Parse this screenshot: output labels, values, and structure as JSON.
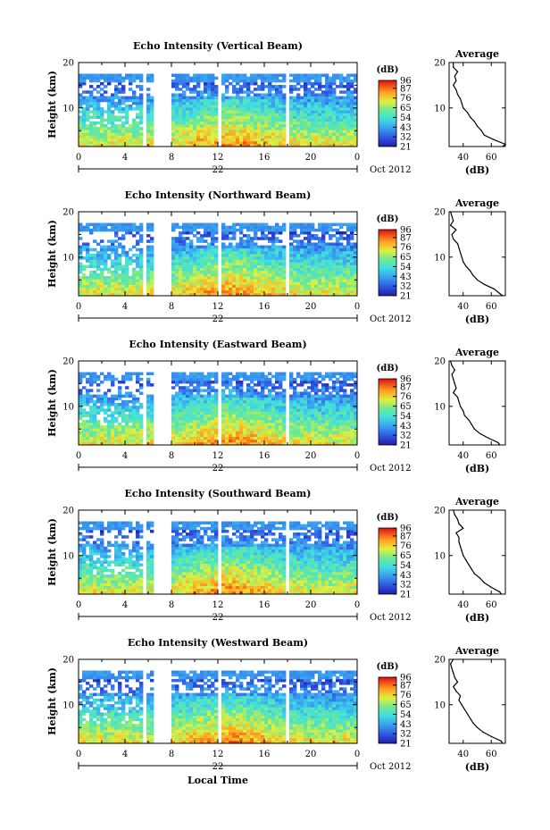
{
  "colorbar_unit": "(dB)",
  "colorbar_ticks": [
    "96",
    "87",
    "76",
    "65",
    "54",
    "43",
    "32",
    "21"
  ],
  "month_label": "Oct 2012",
  "xlabel": "Local Time",
  "chart_data": [
    {
      "type": "heatmap",
      "title": "Echo Intensity (Vertical Beam)",
      "ylabel": "Height (km)",
      "xlabel": "",
      "x_ticks": [
        "0",
        "4",
        "8",
        "12",
        "16",
        "20",
        "0"
      ],
      "xlim": [
        0,
        24
      ],
      "y_ticks": [
        "20",
        "10"
      ],
      "ylim": [
        1.5,
        20
      ],
      "date_label": "22",
      "colorbar": {
        "unit": "(dB)",
        "ticks": [
          96,
          87,
          76,
          65,
          54,
          43,
          32,
          21
        ],
        "range": [
          21,
          96
        ]
      },
      "missing_time_bands": [
        [
          0.8,
          1.0
        ],
        [
          5.6,
          5.8
        ],
        [
          6.6,
          8.0
        ],
        [
          11.9,
          12.2
        ],
        [
          17.7,
          18.0
        ]
      ],
      "profile": {
        "title": "Average",
        "xlabel": "(dB)",
        "x_ticks": [
          "40",
          "60"
        ],
        "xlim": [
          30,
          70
        ],
        "y_ticks": [
          "20",
          "10"
        ],
        "heights": [
          1.5,
          2,
          3,
          4,
          5,
          6,
          7,
          8,
          9,
          10,
          11,
          12,
          13,
          14,
          15,
          16,
          17,
          18,
          19,
          20
        ],
        "values": [
          68,
          70,
          62,
          55,
          53,
          50,
          48,
          45,
          43,
          40,
          39,
          38,
          36,
          35,
          33,
          35,
          34,
          36,
          33,
          33
        ]
      }
    },
    {
      "type": "heatmap",
      "title": "Echo Intensity (Northward Beam)",
      "ylabel": "Height (km)",
      "xlabel": "",
      "x_ticks": [
        "0",
        "4",
        "8",
        "12",
        "16",
        "20",
        "0"
      ],
      "xlim": [
        0,
        24
      ],
      "y_ticks": [
        "20",
        "10"
      ],
      "ylim": [
        1.5,
        20
      ],
      "date_label": "22",
      "colorbar": {
        "unit": "(dB)",
        "ticks": [
          96,
          87,
          76,
          65,
          54,
          43,
          32,
          21
        ],
        "range": [
          21,
          96
        ]
      },
      "missing_time_bands": [
        [
          0.8,
          1.0
        ],
        [
          5.6,
          5.8
        ],
        [
          6.6,
          8.0
        ],
        [
          11.9,
          12.2
        ],
        [
          17.7,
          18.0
        ]
      ],
      "profile": {
        "title": "Average",
        "xlabel": "(dB)",
        "x_ticks": [
          "40",
          "60"
        ],
        "xlim": [
          30,
          70
        ],
        "y_ticks": [
          "20",
          "10"
        ],
        "heights": [
          1.5,
          2,
          3,
          4,
          5,
          6,
          7,
          8,
          9,
          10,
          11,
          12,
          13,
          14,
          15,
          16,
          17,
          18,
          19,
          20
        ],
        "values": [
          68,
          66,
          62,
          55,
          50,
          47,
          45,
          42,
          40,
          39,
          38,
          37,
          36,
          33,
          32,
          35,
          31,
          33,
          32,
          31
        ]
      }
    },
    {
      "type": "heatmap",
      "title": "Echo Intensity (Eastward Beam)",
      "ylabel": "Height (km)",
      "xlabel": "",
      "x_ticks": [
        "0",
        "4",
        "8",
        "12",
        "16",
        "20",
        "0"
      ],
      "xlim": [
        0,
        24
      ],
      "y_ticks": [
        "20",
        "10"
      ],
      "ylim": [
        1.5,
        20
      ],
      "date_label": "22",
      "colorbar": {
        "unit": "(dB)",
        "ticks": [
          96,
          87,
          76,
          65,
          54,
          43,
          32,
          21
        ],
        "range": [
          21,
          96
        ]
      },
      "missing_time_bands": [
        [
          0.8,
          1.0
        ],
        [
          5.6,
          5.8
        ],
        [
          6.6,
          8.0
        ],
        [
          11.9,
          12.2
        ],
        [
          17.7,
          18.0
        ]
      ],
      "profile": {
        "title": "Average",
        "xlabel": "(dB)",
        "x_ticks": [
          "40",
          "60"
        ],
        "xlim": [
          30,
          70
        ],
        "y_ticks": [
          "20",
          "10"
        ],
        "heights": [
          1.5,
          2,
          3,
          4,
          5,
          6,
          7,
          8,
          9,
          10,
          11,
          12,
          13,
          14,
          15,
          16,
          17,
          18,
          19,
          20
        ],
        "values": [
          66,
          65,
          58,
          52,
          48,
          46,
          44,
          41,
          40,
          38,
          37,
          36,
          33,
          35,
          34,
          33,
          32,
          34,
          32,
          31
        ]
      }
    },
    {
      "type": "heatmap",
      "title": "Echo Intensity (Southward Beam)",
      "ylabel": "Height (km)",
      "xlabel": "",
      "x_ticks": [
        "0",
        "4",
        "8",
        "12",
        "16",
        "20",
        "0"
      ],
      "xlim": [
        0,
        24
      ],
      "y_ticks": [
        "20",
        "10"
      ],
      "ylim": [
        1.5,
        20
      ],
      "date_label": "22",
      "colorbar": {
        "unit": "(dB)",
        "ticks": [
          96,
          87,
          76,
          65,
          54,
          43,
          32,
          21
        ],
        "range": [
          21,
          96
        ]
      },
      "missing_time_bands": [
        [
          0.8,
          1.0
        ],
        [
          5.6,
          5.8
        ],
        [
          6.6,
          8.0
        ],
        [
          11.9,
          12.2
        ],
        [
          17.7,
          18.0
        ]
      ],
      "profile": {
        "title": "Average",
        "xlabel": "(dB)",
        "x_ticks": [
          "40",
          "60"
        ],
        "xlim": [
          30,
          70
        ],
        "y_ticks": [
          "20",
          "10"
        ],
        "heights": [
          1.5,
          2,
          3,
          4,
          5,
          6,
          7,
          8,
          9,
          10,
          11,
          12,
          13,
          14,
          15,
          16,
          17,
          18,
          19,
          20
        ],
        "values": [
          67,
          66,
          60,
          55,
          52,
          48,
          46,
          44,
          42,
          40,
          39,
          38,
          37,
          37,
          35,
          40,
          37,
          36,
          34,
          33
        ]
      }
    },
    {
      "type": "heatmap",
      "title": "Echo Intensity (Westward Beam)",
      "ylabel": "Height (km)",
      "xlabel": "Local Time",
      "x_ticks": [
        "0",
        "4",
        "8",
        "12",
        "16",
        "20",
        "0"
      ],
      "xlim": [
        0,
        24
      ],
      "y_ticks": [
        "20",
        "10"
      ],
      "ylim": [
        1.5,
        20
      ],
      "date_label": "22",
      "colorbar": {
        "unit": "(dB)",
        "ticks": [
          96,
          87,
          76,
          65,
          54,
          43,
          32,
          21
        ],
        "range": [
          21,
          96
        ]
      },
      "missing_time_bands": [
        [
          0.8,
          1.0
        ],
        [
          5.6,
          5.8
        ],
        [
          6.6,
          8.0
        ],
        [
          11.9,
          12.2
        ],
        [
          17.7,
          18.0
        ]
      ],
      "profile": {
        "title": "Average",
        "xlabel": "(dB)",
        "x_ticks": [
          "40",
          "60"
        ],
        "xlim": [
          30,
          70
        ],
        "y_ticks": [
          "20",
          "10"
        ],
        "heights": [
          1.5,
          2,
          3,
          4,
          5,
          6,
          7,
          8,
          9,
          10,
          11,
          12,
          13,
          14,
          15,
          16,
          17,
          18,
          19,
          20
        ],
        "values": [
          68,
          67,
          60,
          54,
          50,
          47,
          45,
          43,
          41,
          39,
          37,
          38,
          35,
          33,
          36,
          34,
          33,
          32,
          31,
          33
        ]
      }
    }
  ]
}
